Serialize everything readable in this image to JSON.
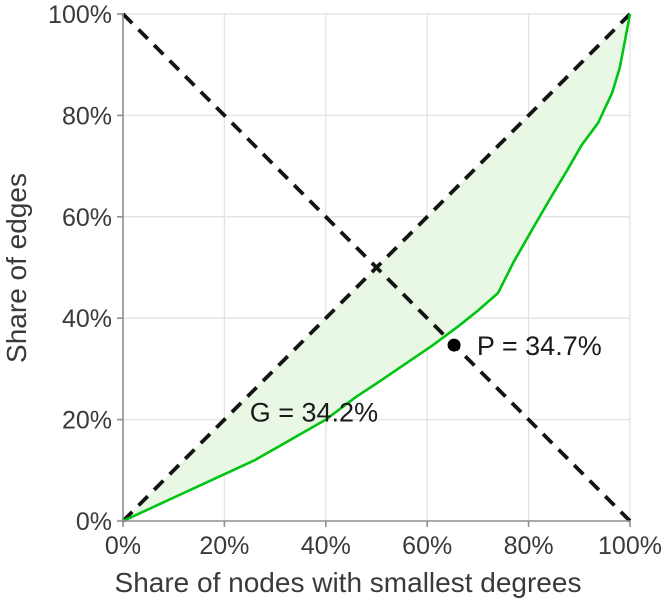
{
  "chart_data": {
    "type": "line",
    "title": "",
    "xlabel": "Share of nodes with smallest degrees",
    "ylabel": "Share of edges",
    "xlim": [
      0,
      100
    ],
    "ylim": [
      0,
      100
    ],
    "grid": true,
    "legend": "none",
    "tick_values": [
      0,
      20,
      40,
      60,
      80,
      100
    ],
    "x_tick_labels": [
      "0%",
      "20%",
      "40%",
      "60%",
      "80%",
      "100%"
    ],
    "y_tick_labels": [
      "0%",
      "20%",
      "40%",
      "60%",
      "80%",
      "100%"
    ],
    "series": [
      {
        "name": "lorenz-curve",
        "style": "solid",
        "color": "#00c411",
        "fill_color": "#e9f8e5",
        "fill_between": "equality-diagonal",
        "points": [
          [
            0,
            0
          ],
          [
            26,
            12
          ],
          [
            33,
            16
          ],
          [
            40,
            20
          ],
          [
            46,
            24.5
          ],
          [
            51,
            27.8
          ],
          [
            56,
            31.2
          ],
          [
            61,
            34.6
          ],
          [
            66,
            38.3
          ],
          [
            70,
            41.5
          ],
          [
            74,
            45
          ],
          [
            77,
            51
          ],
          [
            81,
            58
          ],
          [
            84.5,
            64
          ],
          [
            87.5,
            69
          ],
          [
            90.5,
            74.2
          ],
          [
            93.7,
            78.5
          ],
          [
            96.5,
            84.5
          ],
          [
            98,
            89.5
          ],
          [
            99.4,
            96.8
          ],
          [
            100,
            100
          ]
        ]
      },
      {
        "name": "equality-diagonal",
        "style": "dashed",
        "color": "#141414",
        "points": [
          [
            0,
            0
          ],
          [
            100,
            100
          ]
        ]
      },
      {
        "name": "anti-diagonal",
        "style": "dashed",
        "color": "#141414",
        "points": [
          [
            0,
            100
          ],
          [
            100,
            0
          ]
        ]
      }
    ],
    "marker": {
      "x": 65.3,
      "y": 34.7,
      "color": "#000000",
      "radius": 6.5
    },
    "annotations": [
      {
        "id": "gini",
        "text": "G = 34.2%",
        "x": 25.0,
        "y": 21.5
      },
      {
        "id": "point",
        "text": "P = 34.7%",
        "x": 69.8,
        "y": 34.7
      }
    ],
    "colors": {
      "grid": "#e3e3e3",
      "axis": "#909090",
      "tick_text": "#3a3a3a",
      "annotation_text": "#1a1a1a",
      "background": "#ffffff"
    }
  }
}
